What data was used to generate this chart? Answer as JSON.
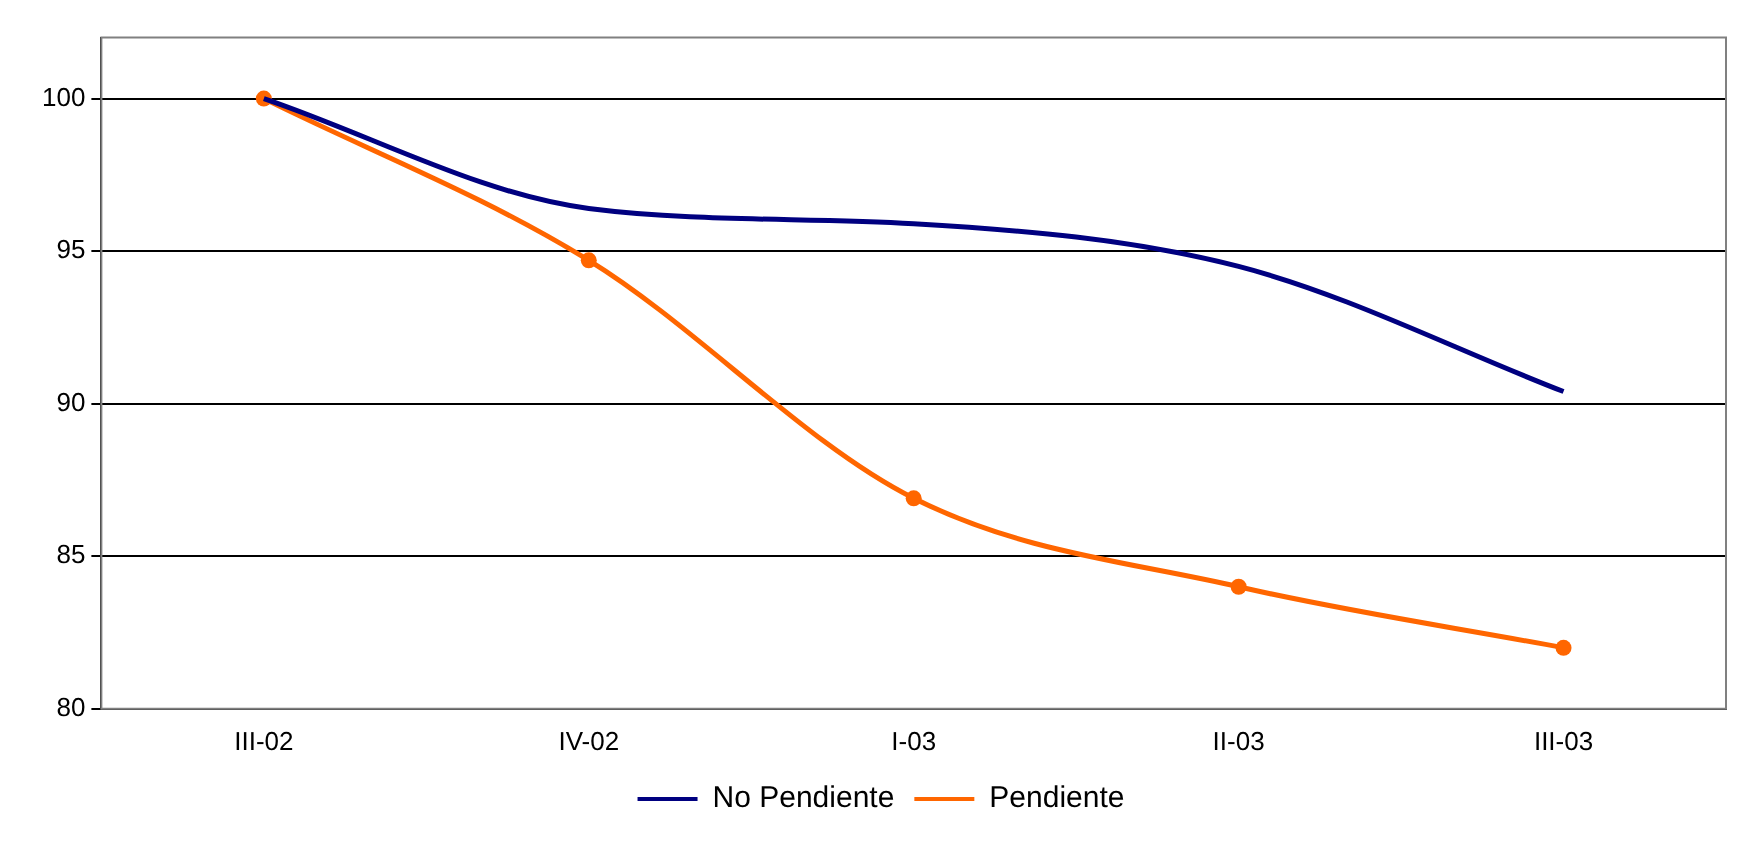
{
  "chart_data": {
    "type": "line",
    "categories": [
      "III-02",
      "IV-02",
      "I-03",
      "II-03",
      "III-03"
    ],
    "series": [
      {
        "name": "No Pendiente",
        "color": "#000080",
        "values": [
          100,
          96.4,
          95.9,
          94.5,
          90.4
        ],
        "marker": "none"
      },
      {
        "name": "Pendiente",
        "color": "#ff6600",
        "values": [
          100,
          94.7,
          86.9,
          84.0,
          82.0
        ],
        "marker": "circle"
      }
    ],
    "ylim": [
      80,
      102
    ],
    "yticks": [
      80,
      85,
      90,
      95,
      100
    ],
    "grid": "y",
    "legend": "bottom",
    "line_style": "solid"
  }
}
